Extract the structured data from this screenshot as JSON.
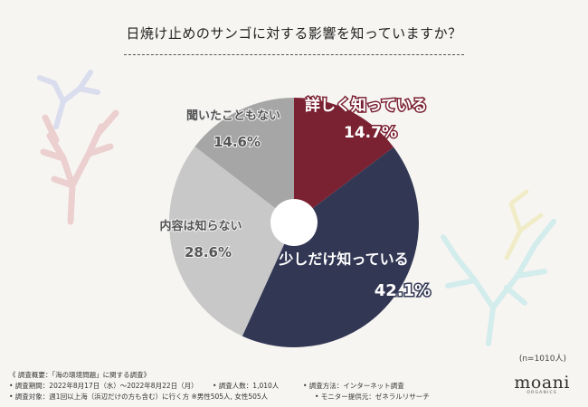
{
  "title": "日焼け止めのサンゴに対する影響を知っていますか？",
  "n_label": "(n=1010人)",
  "chart_data": {
    "type": "pie",
    "title": "日焼け止めのサンゴに対する影響を知っていますか？",
    "slices": [
      {
        "label": "詳しく知っている",
        "value": 14.7,
        "display": "14.7%",
        "color": "#7b2232",
        "text_color": "#7b2232"
      },
      {
        "label": "少しだけ知っている",
        "value": 42.1,
        "display": "42.1%",
        "color": "#323754",
        "text_color": "#323754"
      },
      {
        "label": "内容は知らない",
        "value": 28.6,
        "display": "28.6%",
        "color": "#c8c8c8",
        "text_color": "#555555"
      },
      {
        "label": "聞いたこともない",
        "value": 14.6,
        "display": "14.6%",
        "color": "#a6a6a6",
        "text_color": "#555555"
      }
    ],
    "start_angle_deg": 0,
    "direction": "clockwise",
    "donut_hole": true
  },
  "footer": {
    "line1": "《 調査概要：「海の環境問題」に関する調査》",
    "line2a": "• 調査期間：2022年8月17日（水）〜2022年8月22日（月）",
    "line2b": "• 調査人数：1,010人",
    "line2c": "• 調査方法：インターネット調査",
    "line3a": "• 調査対象：週1回以上海（浜辺だけの方も含む）に行く方 ※男性505人, 女性505人",
    "line3b": "• モニター提供元：ゼネラルリサーチ"
  },
  "logo": {
    "main": "moani",
    "sub": "ORGANICS"
  }
}
